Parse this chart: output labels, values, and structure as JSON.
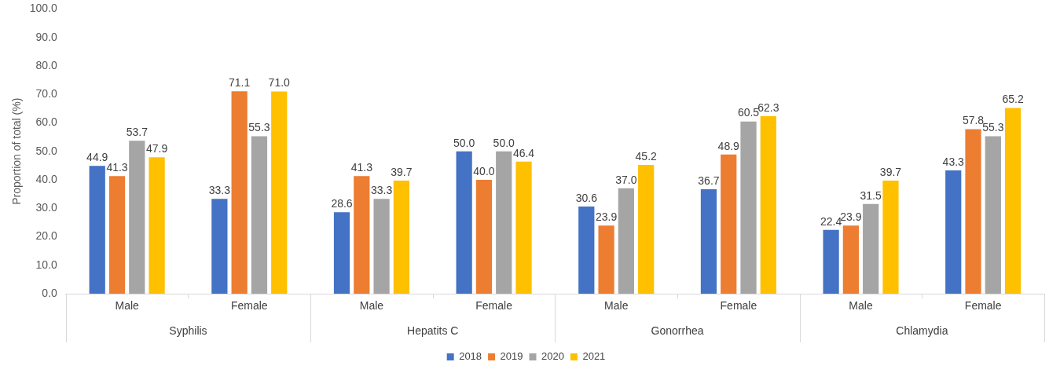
{
  "chart_data": {
    "type": "bar",
    "ylabel": "Proportion of total (%)",
    "categories": [
      "Male",
      "Female",
      "Male",
      "Female",
      "Male",
      "Female",
      "Male",
      "Female"
    ],
    "annotations": [
      "Syphilis",
      "Hepatits C",
      "Gonorrhea",
      "Chlamydia"
    ],
    "series": [
      {
        "name": "2018",
        "color": "#4472c4",
        "values": [
          44.9,
          33.3,
          28.6,
          50.0,
          30.6,
          36.7,
          22.4,
          43.3
        ],
        "value_labels": [
          "44.9",
          "33.3",
          "28.6",
          "50.0",
          "30.6",
          "36.7",
          "22.4",
          "43.3"
        ]
      },
      {
        "name": "2019",
        "color": "#ed7d31",
        "values": [
          41.3,
          71.1,
          41.3,
          40.0,
          23.9,
          48.9,
          23.9,
          57.8
        ],
        "value_labels": [
          "41.3",
          "71.1",
          "41.3",
          "40.0",
          "23.9",
          "48.9",
          "23.9",
          "57.8"
        ]
      },
      {
        "name": "2020",
        "color": "#a5a5a5",
        "values": [
          53.7,
          55.3,
          33.3,
          50.0,
          37.0,
          60.5,
          31.5,
          55.3
        ],
        "value_labels": [
          "53.7",
          "55.3",
          "33.3",
          "50.0",
          "37.0",
          "60.5",
          "31.5",
          "55.3"
        ]
      },
      {
        "name": "2021",
        "color": "#ffc000",
        "values": [
          47.9,
          71.0,
          39.7,
          46.4,
          45.2,
          62.3,
          39.7,
          65.2
        ],
        "value_labels": [
          "47.9",
          "71.0",
          "39.7",
          "46.4",
          "45.2",
          "62.3",
          "39.7",
          "65.2"
        ]
      }
    ],
    "ylim": [
      0,
      100
    ],
    "yticks": [
      {
        "value": 0,
        "label": "0.0"
      },
      {
        "value": 10,
        "label": "10.0"
      },
      {
        "value": 20,
        "label": "20.0"
      },
      {
        "value": 30,
        "label": "30.0"
      },
      {
        "value": 40,
        "label": "40.0"
      },
      {
        "value": 50,
        "label": "50.0"
      },
      {
        "value": 60,
        "label": "60.0"
      },
      {
        "value": 70,
        "label": "70.0"
      },
      {
        "value": 80,
        "label": "80.0"
      },
      {
        "value": 90,
        "label": "90.0"
      },
      {
        "value": 100,
        "label": "100.0"
      }
    ],
    "grid": false,
    "legend": "bottom"
  }
}
